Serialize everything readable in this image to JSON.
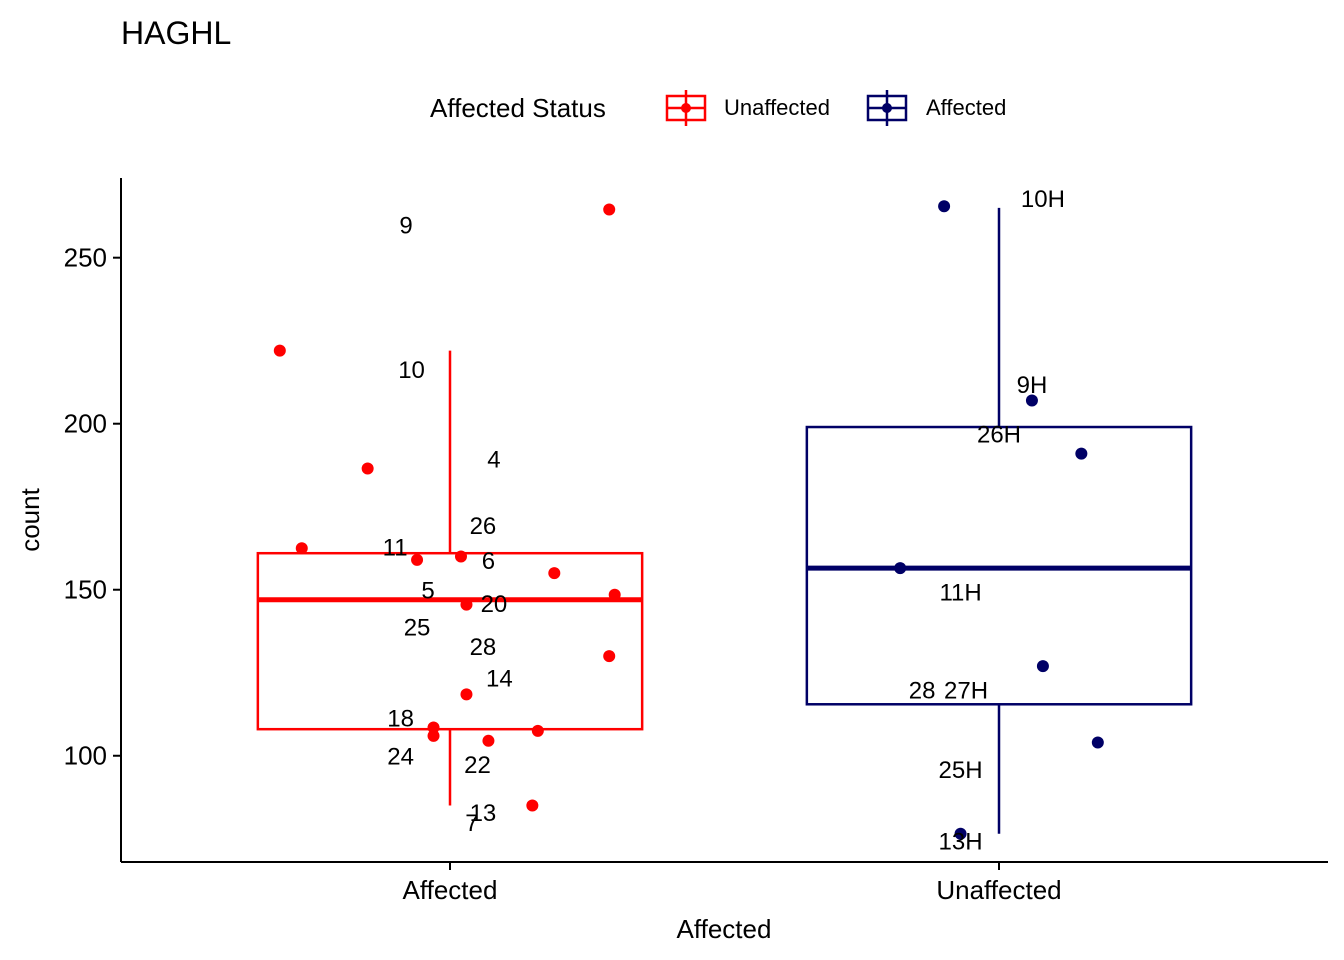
{
  "chart_data": {
    "type": "box",
    "title": "HAGHL",
    "xlabel": "Affected",
    "ylabel": "count",
    "ylim": [
      68,
      274
    ],
    "yticks": [
      "100",
      "150",
      "200",
      "250"
    ],
    "categories": [
      "Affected",
      "Unaffected"
    ],
    "legend": {
      "title": "Affected Status",
      "position": "top",
      "entries": [
        {
          "label": "Unaffected",
          "color": "#ff0000"
        },
        {
          "label": "Affected",
          "color": "#000066"
        }
      ]
    },
    "grid": false,
    "boxes": [
      {
        "category": "Affected",
        "color": "#ff0000",
        "q1": 108,
        "median": 147,
        "q3": 161,
        "whisker_low": 85,
        "whisker_high": 222
      },
      {
        "category": "Unaffected",
        "color": "#000066",
        "q1": 115.5,
        "median": 156.5,
        "q3": 199,
        "whisker_low": 76.5,
        "whisker_high": 265
      }
    ],
    "points": [
      {
        "category": "Affected",
        "jitter": 0.29,
        "y": 264.5,
        "label": "9",
        "label_dx": -0.37,
        "label_dy": -4.5
      },
      {
        "category": "Affected",
        "jitter": -0.31,
        "y": 222,
        "label": "10",
        "label_dx": 0.24,
        "label_dy": -5.5
      },
      {
        "category": "Affected",
        "jitter": -0.15,
        "y": 186.5,
        "label": "4",
        "label_dx": 0.23,
        "label_dy": 3
      },
      {
        "category": "Affected",
        "jitter": -0.27,
        "y": 162.5,
        "label": "26",
        "label_dx": 0.33,
        "label_dy": 7
      },
      {
        "category": "Affected",
        "jitter": -0.06,
        "y": 159,
        "label": "11",
        "label_dx": -0.04,
        "label_dy": 4
      },
      {
        "category": "Affected",
        "jitter": 0.02,
        "y": 160,
        "label": "6",
        "label_dx": 0.05,
        "label_dy": -1
      },
      {
        "category": "Affected",
        "jitter": 0.19,
        "y": 155,
        "label": "",
        "label_dx": 0,
        "label_dy": 0
      },
      {
        "category": "Affected",
        "jitter": 0.03,
        "y": 145.5,
        "label": "20",
        "label_dx": 0.05,
        "label_dy": 0.5
      },
      {
        "category": "Affected",
        "jitter": 0.3,
        "y": 148.5,
        "label": "",
        "label_dx": 0,
        "label_dy": 0
      },
      {
        "category": "Affected",
        "jitter": 0.29,
        "y": 130,
        "label": "",
        "label_dx": 0,
        "label_dy": 0
      },
      {
        "category": "Affected",
        "jitter": 0.03,
        "y": 118.5,
        "label": "14",
        "label_dx": 0.06,
        "label_dy": 5
      },
      {
        "category": "Affected",
        "jitter": -0.03,
        "y": 108.5,
        "label": "18",
        "label_dx": -0.06,
        "label_dy": 3
      },
      {
        "category": "Affected",
        "jitter": 0.16,
        "y": 107.5,
        "label": "",
        "label_dx": 0,
        "label_dy": 0
      },
      {
        "category": "Affected",
        "jitter": -0.03,
        "y": 106,
        "label": "24",
        "label_dx": -0.06,
        "label_dy": -6
      },
      {
        "category": "Affected",
        "jitter": 0.07,
        "y": 104.5,
        "label": "22",
        "label_dx": -0.02,
        "label_dy": -7
      },
      {
        "category": "Affected",
        "jitter": 0.15,
        "y": 85,
        "label": "",
        "label_dx": 0,
        "label_dy": 0
      },
      {
        "category": "Unaffected",
        "jitter": -0.1,
        "y": 265.5,
        "label": "10H",
        "label_dx": 0.18,
        "label_dy": 2.5
      },
      {
        "category": "Unaffected",
        "jitter": 0.06,
        "y": 207,
        "label": "9H",
        "label_dx": 0,
        "label_dy": 5
      },
      {
        "category": "Unaffected",
        "jitter": 0.15,
        "y": 191,
        "label": "26H",
        "label_dx": -0.15,
        "label_dy": 6
      },
      {
        "category": "Unaffected",
        "jitter": -0.18,
        "y": 156.5,
        "label": "11H",
        "label_dx": 0.11,
        "label_dy": -7
      },
      {
        "category": "Unaffected",
        "jitter": 0.08,
        "y": 127,
        "label": "27H",
        "label_dx": -0.14,
        "label_dy": -7
      },
      {
        "category": "Unaffected",
        "jitter": 0.18,
        "y": 104,
        "label": "",
        "label_dx": 0,
        "label_dy": 0
      },
      {
        "category": "Unaffected",
        "jitter": -0.07,
        "y": 76.5,
        "label": "13H",
        "label_dx": 0,
        "label_dy": -2
      }
    ],
    "extra_labels": [
      {
        "category": "Affected",
        "x_off": -0.04,
        "y": 150,
        "text": "5"
      },
      {
        "category": "Affected",
        "x_off": -0.06,
        "y": 139,
        "text": "25"
      },
      {
        "category": "Affected",
        "x_off": 0.06,
        "y": 133,
        "text": "28"
      },
      {
        "category": "Affected",
        "x_off": 0.06,
        "y": 83,
        "text": "13"
      },
      {
        "category": "Affected",
        "x_off": 0.04,
        "y": 80,
        "text": "7"
      },
      {
        "category": "Unaffected",
        "x_off": -0.14,
        "y": 120,
        "text": "28"
      },
      {
        "category": "Unaffected",
        "x_off": -0.07,
        "y": 96,
        "text": "25H"
      }
    ]
  }
}
